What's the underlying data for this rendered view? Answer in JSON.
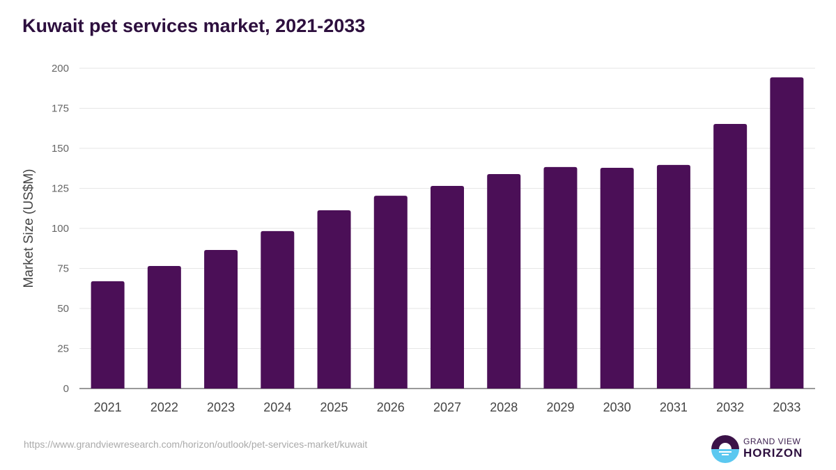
{
  "chart_data": {
    "type": "bar",
    "title": "Kuwait pet services market, 2021-2033",
    "xlabel": "",
    "ylabel": "Market Size (US$M)",
    "ylim": [
      0,
      200
    ],
    "yticks": [
      0,
      25,
      50,
      75,
      100,
      125,
      150,
      175,
      200
    ],
    "grid": true,
    "categories": [
      "2021",
      "2022",
      "2023",
      "2024",
      "2025",
      "2026",
      "2027",
      "2028",
      "2029",
      "2030",
      "2031",
      "2032",
      "2033"
    ],
    "values": [
      67.0,
      76.5,
      86.5,
      98.3,
      111.3,
      120.4,
      126.5,
      133.9,
      138.3,
      137.8,
      139.6,
      165.2,
      194.3
    ],
    "bar_color": "#4b0f57"
  },
  "source": "https://www.grandviewresearch.com/horizon/outlook/pet-services-market/kuwait",
  "logo": {
    "line1": "GRAND VIEW",
    "line2": "HORIZON"
  }
}
